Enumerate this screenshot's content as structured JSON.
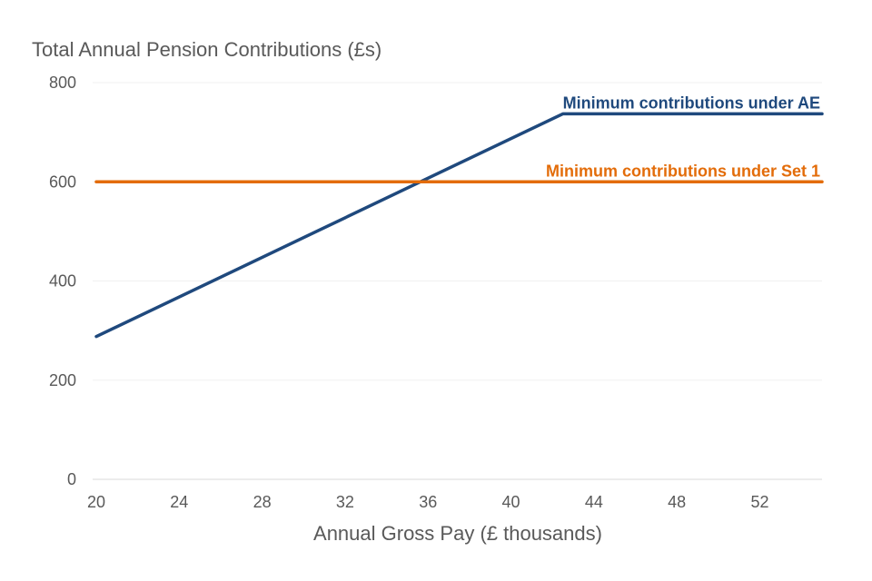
{
  "chart_data": {
    "type": "line",
    "title": "",
    "ylabel": "Total Annual Pension Contributions (£s)",
    "xlabel": "Annual Gross Pay (£ thousands)",
    "xlim": [
      20,
      55
    ],
    "ylim": [
      0,
      800
    ],
    "xticks": [
      20,
      24,
      28,
      32,
      36,
      40,
      44,
      48,
      52
    ],
    "yticks": [
      0,
      200,
      400,
      600,
      800
    ],
    "grid": "horizontal",
    "series": [
      {
        "name": "Minimum contributions under AE",
        "color": "#1f497d",
        "x": [
          20,
          42.5,
          55
        ],
        "y": [
          288,
          737,
          737
        ]
      },
      {
        "name": "Minimum contributions under Set 1",
        "color": "#e36c09",
        "x": [
          20,
          55
        ],
        "y": [
          600,
          600
        ]
      }
    ]
  }
}
